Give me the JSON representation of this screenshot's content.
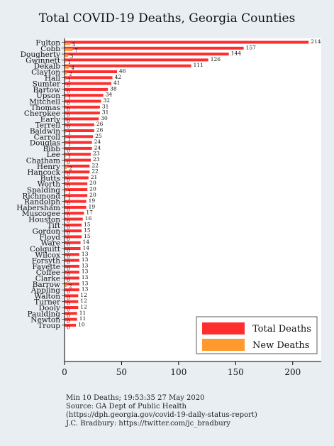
{
  "chart_data": {
    "type": "bar",
    "orientation": "horizontal",
    "title": "Total COVID-19 Deaths, Georgia Counties",
    "xlabel": "",
    "ylabel": "",
    "xlim": [
      0,
      225
    ],
    "xticks": [
      0,
      50,
      100,
      150,
      200
    ],
    "grid": false,
    "legend_position": "bottom-right",
    "categories": [
      "Fulton",
      "Cobb",
      "Dougherty",
      "Gwinnett",
      "Dekalb",
      "Clayton",
      "Hall",
      "Sumter",
      "Bartow",
      "Upson",
      "Mitchell",
      "Thomas",
      "Cherokee",
      "Early",
      "Terrell",
      "Baldwin",
      "Carroll",
      "Douglas",
      "Bibb",
      "Lee",
      "Chatham",
      "Henry",
      "Hancock",
      "Butts",
      "Worth",
      "Spalding",
      "Richmond",
      "Randolph",
      "Habersham",
      "Muscogee",
      "Houston",
      "Tift",
      "Gordon",
      "Floyd",
      "Ware",
      "Colquitt",
      "Wilcox",
      "Forsyth",
      "Fayette",
      "Coffee",
      "Clarke",
      "Barrow",
      "Appling",
      "Walton",
      "Turner",
      "Dooly",
      "Paulding",
      "Newton",
      "Troup"
    ],
    "series": [
      {
        "name": "Total Deaths",
        "color": "#ff2e2e",
        "values": [
          214,
          157,
          144,
          126,
          111,
          46,
          42,
          41,
          38,
          34,
          32,
          31,
          31,
          30,
          26,
          26,
          25,
          24,
          24,
          23,
          23,
          22,
          22,
          21,
          20,
          20,
          20,
          19,
          19,
          17,
          16,
          15,
          15,
          15,
          14,
          14,
          13,
          13,
          13,
          13,
          13,
          13,
          13,
          12,
          12,
          12,
          11,
          11,
          10
        ]
      },
      {
        "name": "New Deaths",
        "color": "#ff9a2e",
        "values": [
          5,
          7,
          3,
          1,
          4,
          2,
          1,
          0,
          0,
          1,
          0,
          0,
          0,
          0,
          0,
          1,
          1,
          1,
          0,
          1,
          0,
          2,
          0,
          0,
          0,
          1,
          1,
          0,
          0,
          0,
          0,
          0,
          0,
          0,
          0,
          0,
          0,
          0,
          0,
          0,
          0,
          2,
          0,
          0,
          0,
          0,
          0,
          0,
          0
        ]
      }
    ]
  },
  "footer": {
    "line1": "Min 10 Deaths; 19:53:35  27 May 2020",
    "line2": "Source: GA Dept of Public Health",
    "line3": "(https://dph.georgia.gov/covid-19-daily-status-report)",
    "line4": "J.C. Bradbury: https://twitter.com/jc_bradbury"
  },
  "colors": {
    "background": "#e9eef3",
    "plot_background": "#ffffff",
    "total": "#ff2e2e",
    "new": "#ff9a2e"
  }
}
